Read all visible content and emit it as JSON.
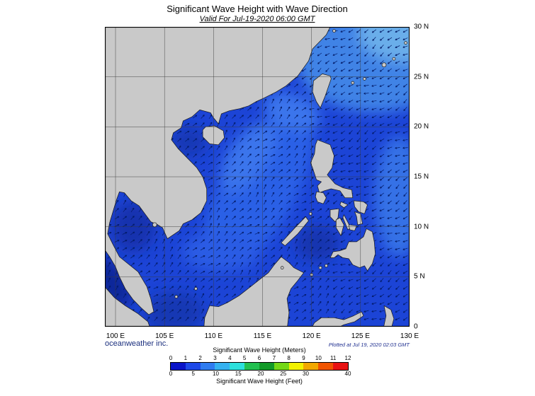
{
  "header": {
    "title": "Significant Wave Height with Wave Direction",
    "subtitle": "Valid For Jul-19-2020 06:00 GMT"
  },
  "axes": {
    "x_ticks": [
      "100 E",
      "105 E",
      "110 E",
      "115 E",
      "120 E",
      "125 E",
      "130 E"
    ],
    "y_ticks": [
      "30 N",
      "25 N",
      "20 N",
      "15 N",
      "10 N",
      "5 N",
      "0"
    ],
    "lon_range": [
      100,
      130
    ],
    "lat_range": [
      0,
      30
    ]
  },
  "legend": {
    "meters_label": "Significant Wave Height (Meters)",
    "feet_label": "Significant Wave Height (Feet)",
    "meters_ticks": [
      "0",
      "1",
      "2",
      "3",
      "4",
      "5",
      "6",
      "7",
      "8",
      "9",
      "10",
      "11",
      "12"
    ],
    "feet_ticks": [
      "0",
      "5",
      "10",
      "15",
      "20",
      "25",
      "30",
      "40"
    ],
    "segment_colors": [
      "#0a14c8",
      "#1e49e8",
      "#2f7cf0",
      "#35b2f0",
      "#2ce0dc",
      "#22c050",
      "#129a28",
      "#74d816",
      "#f2f200",
      "#f2a800",
      "#f05400",
      "#e81212"
    ]
  },
  "footer": {
    "credit": "oceanweather inc.",
    "plotted": "Plotted at Jul 19, 2020 02:03 GMT"
  },
  "map_colors": {
    "land": "#c9c9c9",
    "coastline": "#1a1a1a",
    "ocean_base": "#1c44d6",
    "grid": "#3a3a3a",
    "arrow": "#021a66",
    "border": "#000000"
  }
}
